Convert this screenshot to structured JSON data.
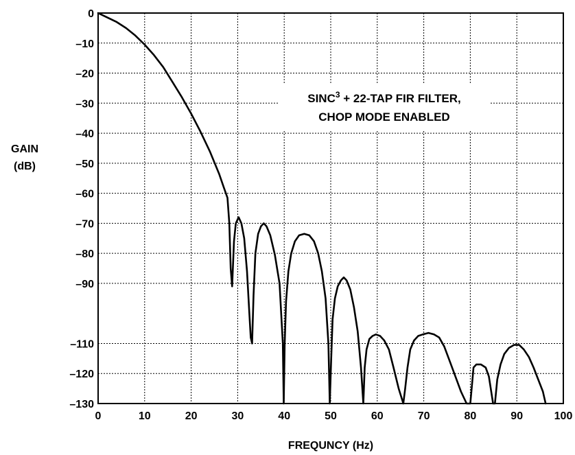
{
  "chart_data": {
    "type": "line",
    "title": "",
    "xlabel": "FREQUNCY (Hz)",
    "ylabel_lines": [
      "GAIN",
      "(dB)"
    ],
    "xlim": [
      0,
      100
    ],
    "ylim": [
      -130,
      0
    ],
    "x_ticks": [
      0,
      10,
      20,
      30,
      40,
      50,
      60,
      70,
      80,
      90,
      100
    ],
    "x_tick_labels": [
      "0",
      "10",
      "20",
      "30",
      "40",
      "50",
      "60",
      "70",
      "80",
      "90",
      "100"
    ],
    "y_ticks": [
      0,
      -10,
      -20,
      -30,
      -40,
      -50,
      -60,
      -70,
      -80,
      -90,
      -110,
      -120,
      -130
    ],
    "y_tick_labels": [
      "0",
      "–10",
      "–20",
      "–30",
      "–40",
      "–50",
      "–60",
      "–70",
      "–80",
      "–90",
      "–110",
      "–120",
      "–130"
    ],
    "grid": true,
    "annotation": {
      "line1_text": "SINC",
      "line1_superscript": "3",
      "line1_rest": " + 22-TAP FIR FILTER,",
      "line2": "CHOP MODE ENABLED"
    },
    "series": [
      {
        "x": [
          0,
          2,
          4,
          6,
          8,
          10,
          12,
          14,
          16,
          18,
          20,
          22,
          24,
          26,
          27,
          27.8,
          28.2,
          28.5,
          28.8,
          29.2,
          29.6,
          30.2,
          30.8,
          31.4,
          32.0,
          32.5,
          32.8,
          33.1,
          33.4,
          33.8,
          34.4,
          35.0,
          35.6,
          36.2,
          37.0,
          38.0,
          39.0,
          39.7,
          39.9,
          40.1,
          40.4,
          40.9,
          41.5,
          42.3,
          43.2,
          44.3,
          45.4,
          46.4,
          47.3,
          48.1,
          48.9,
          49.5,
          49.8,
          50.1,
          50.4,
          50.9,
          51.5,
          52.2,
          52.8,
          53.4,
          54.2,
          55.0,
          55.8,
          56.5,
          57.0,
          57.3,
          57.7,
          58.3,
          59.0,
          59.7,
          60.6,
          61.5,
          62.5,
          63.5,
          64.6,
          65.6,
          66.0,
          66.5,
          67.1,
          67.9,
          68.8,
          69.8,
          71.0,
          72.2,
          73.3,
          74.4,
          75.6,
          76.8,
          78.0,
          79.2,
          80.0,
          80.3,
          80.7,
          81.3,
          82.3,
          83.3,
          84.0,
          84.5,
          84.9,
          85.3,
          85.8,
          86.5,
          87.3,
          88.3,
          89.4,
          90.5,
          91.5,
          92.6,
          93.6,
          94.6,
          95.6,
          96.2
        ],
        "y": [
          0,
          -1.5,
          -3,
          -5,
          -7.5,
          -10.5,
          -14,
          -18,
          -23,
          -28,
          -33.5,
          -39.5,
          -46,
          -53.5,
          -58,
          -61.5,
          -70,
          -85,
          -91,
          -76,
          -70,
          -68,
          -70,
          -75,
          -86,
          -100,
          -108,
          -110,
          -94,
          -80,
          -73.5,
          -71,
          -70,
          -71,
          -74,
          -80.5,
          -90,
          -110,
          -130,
          -110,
          -96,
          -86,
          -80,
          -76,
          -74,
          -73.5,
          -74,
          -76,
          -80,
          -86,
          -95,
          -110,
          -130,
          -115,
          -102,
          -95,
          -91,
          -89,
          -88,
          -89,
          -92,
          -98,
          -106,
          -118,
          -130,
          -118,
          -112,
          -108.5,
          -107.5,
          -107,
          -107.5,
          -109,
          -112,
          -118,
          -125,
          -130,
          -125,
          -118,
          -112,
          -109,
          -107.5,
          -107,
          -106.5,
          -107,
          -108,
          -111,
          -116,
          -121,
          -126,
          -130,
          -130,
          -125,
          -118,
          -117,
          -117,
          -118,
          -121,
          -126,
          -130,
          -130,
          -122,
          -117,
          -113.5,
          -111.5,
          -110.5,
          -110.5,
          -112,
          -114.5,
          -118,
          -122,
          -126,
          -130
        ]
      }
    ]
  }
}
